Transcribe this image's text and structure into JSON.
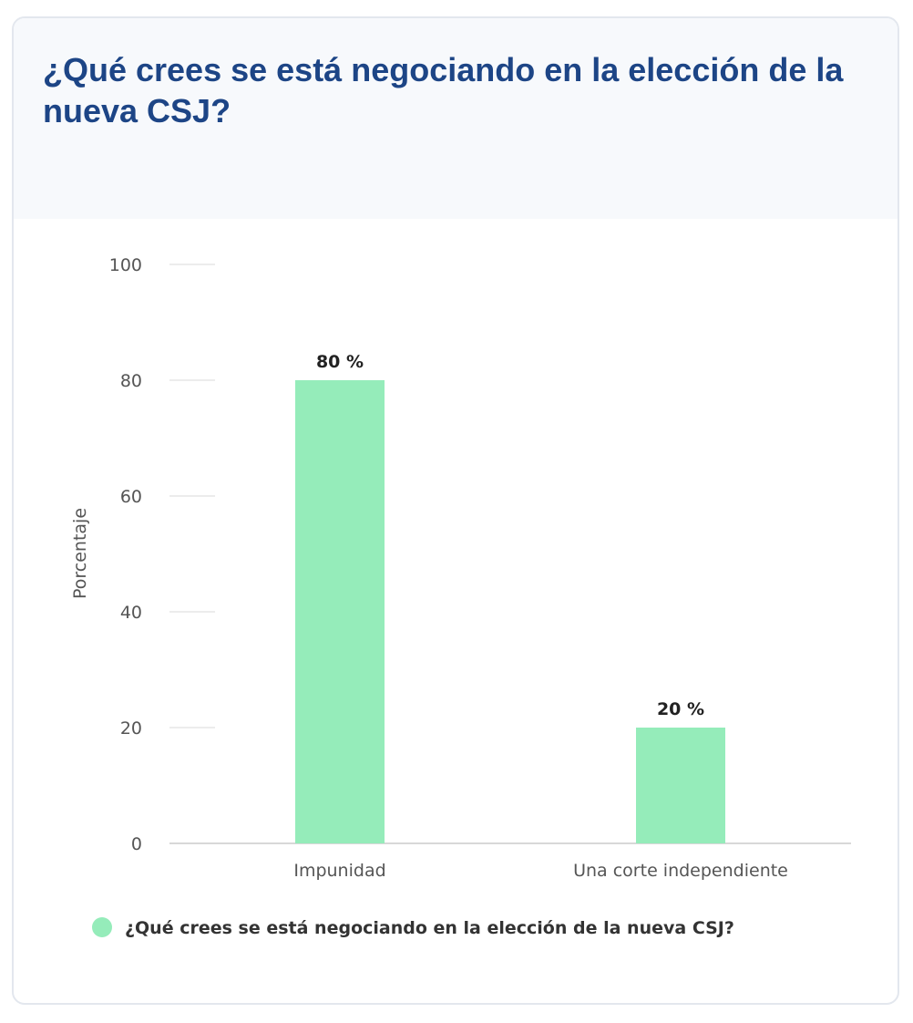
{
  "card": {
    "title": "¿Qué crees se está negociando en la elección de la nueva CSJ?"
  },
  "colors": {
    "title": "#1d4586",
    "header_bg": "#f7f9fc",
    "bar": "#95ecba",
    "grid": "#e6e6e6",
    "baseline": "#cccccc"
  },
  "chart_data": {
    "type": "bar",
    "categories": [
      "Impunidad",
      "Una corte independiente"
    ],
    "series": [
      {
        "name": "¿Qué crees se está negociando en la elección de la nueva CSJ?",
        "values": [
          80,
          20
        ]
      }
    ],
    "data_labels": [
      "80 %",
      "20 %"
    ],
    "xlabel": "",
    "ylabel": "Porcentaje",
    "ylim": [
      0,
      100
    ],
    "yticks": [
      0,
      20,
      40,
      60,
      80,
      100
    ],
    "grid": true,
    "legend": "bottom-center"
  }
}
